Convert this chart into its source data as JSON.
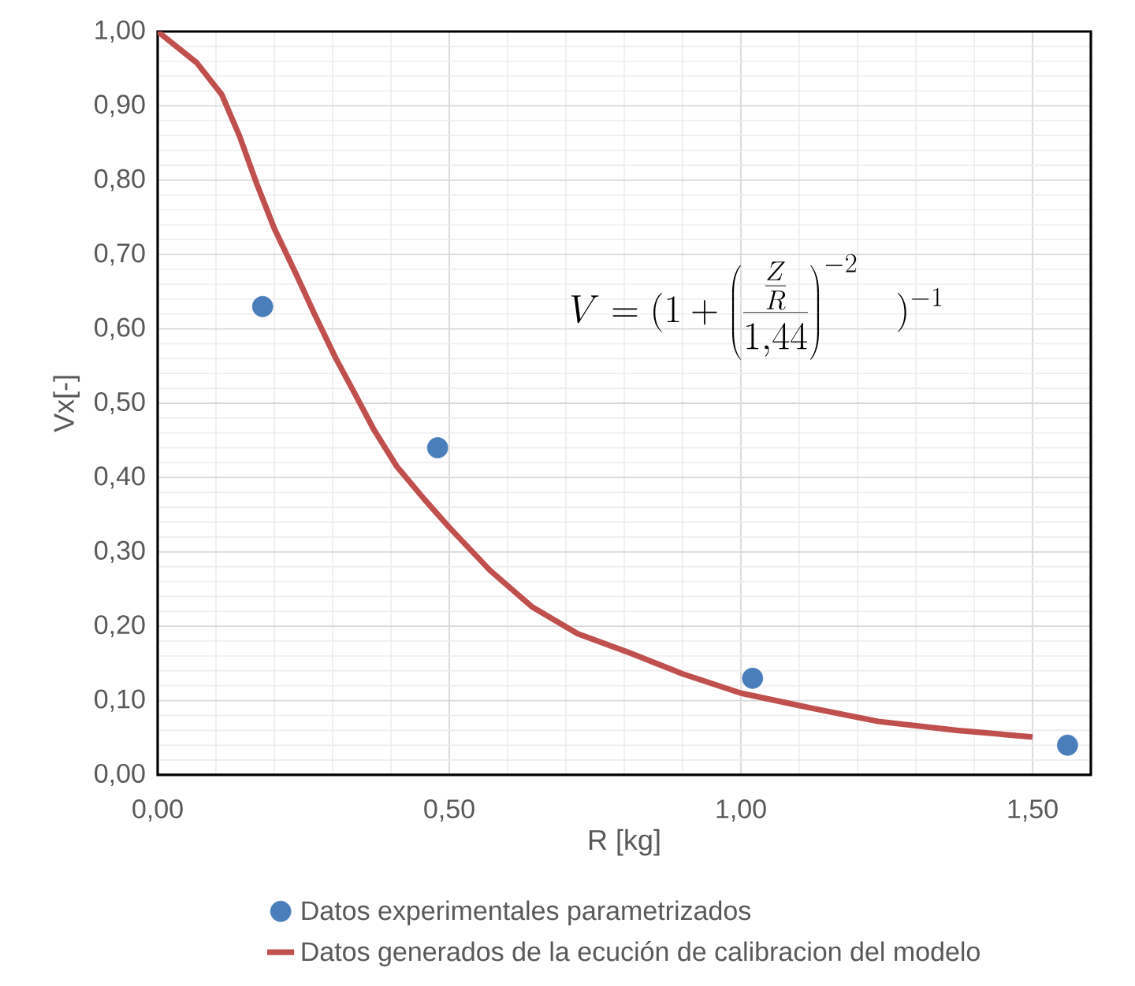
{
  "chart_data": {
    "type": "scatter",
    "xlabel": "R [kg]",
    "ylabel": "Vx[-]",
    "annotations": [
      "V=(1+\\left(\\frac{\\frac{Z}{R}}{1{,}44}\\right)^{-2}\\quad)^{-1}"
    ],
    "series": [
      {
        "name": "Datos experimentales parametrizados",
        "color": "#4a7ebb",
        "marker": "circle",
        "x": [
          0.18,
          0.48,
          1.02,
          1.56
        ],
        "values": [
          0.63,
          0.44,
          0.13,
          0.04
        ]
      },
      {
        "name": "Datos generados de la ecución de calibracion del modelo",
        "type": "line",
        "color": "#c0504d",
        "marker": "none",
        "line_style": "solid",
        "x": [
          0.0,
          0.067,
          0.11,
          0.14,
          0.17,
          0.2,
          0.236,
          0.27,
          0.305,
          0.34,
          0.371,
          0.41,
          0.457,
          0.5,
          0.57,
          0.642,
          0.72,
          0.81,
          0.9,
          1.0,
          1.12,
          1.235,
          1.37,
          1.5
        ],
        "values": [
          1.0,
          0.958,
          0.915,
          0.86,
          0.795,
          0.735,
          0.676,
          0.618,
          0.561,
          0.51,
          0.464,
          0.415,
          0.371,
          0.333,
          0.275,
          0.226,
          0.19,
          0.164,
          0.136,
          0.11,
          0.09,
          0.072,
          0.06,
          0.051
        ]
      }
    ],
    "xlim": [
      0,
      1.6
    ],
    "ylim": [
      0,
      1.0
    ],
    "xticks": [
      {
        "value": 0,
        "label": "0,00"
      },
      {
        "value": 0.5,
        "label": "0,50"
      },
      {
        "value": 1.0,
        "label": "1,00"
      },
      {
        "value": 1.5,
        "label": "1,50"
      }
    ],
    "yticks": [
      {
        "value": 0,
        "label": "0,00"
      },
      {
        "value": 0.1,
        "label": "0,10"
      },
      {
        "value": 0.2,
        "label": "0,20"
      },
      {
        "value": 0.3,
        "label": "0,30"
      },
      {
        "value": 0.4,
        "label": "0,40"
      },
      {
        "value": 0.5,
        "label": "0,50"
      },
      {
        "value": 0.6,
        "label": "0,60"
      },
      {
        "value": 0.7,
        "label": "0,70"
      },
      {
        "value": 0.8,
        "label": "0,80"
      },
      {
        "value": 0.9,
        "label": "0,90"
      },
      {
        "value": 1.0,
        "label": "1,00"
      }
    ],
    "grid": true,
    "legend": "bottom"
  }
}
